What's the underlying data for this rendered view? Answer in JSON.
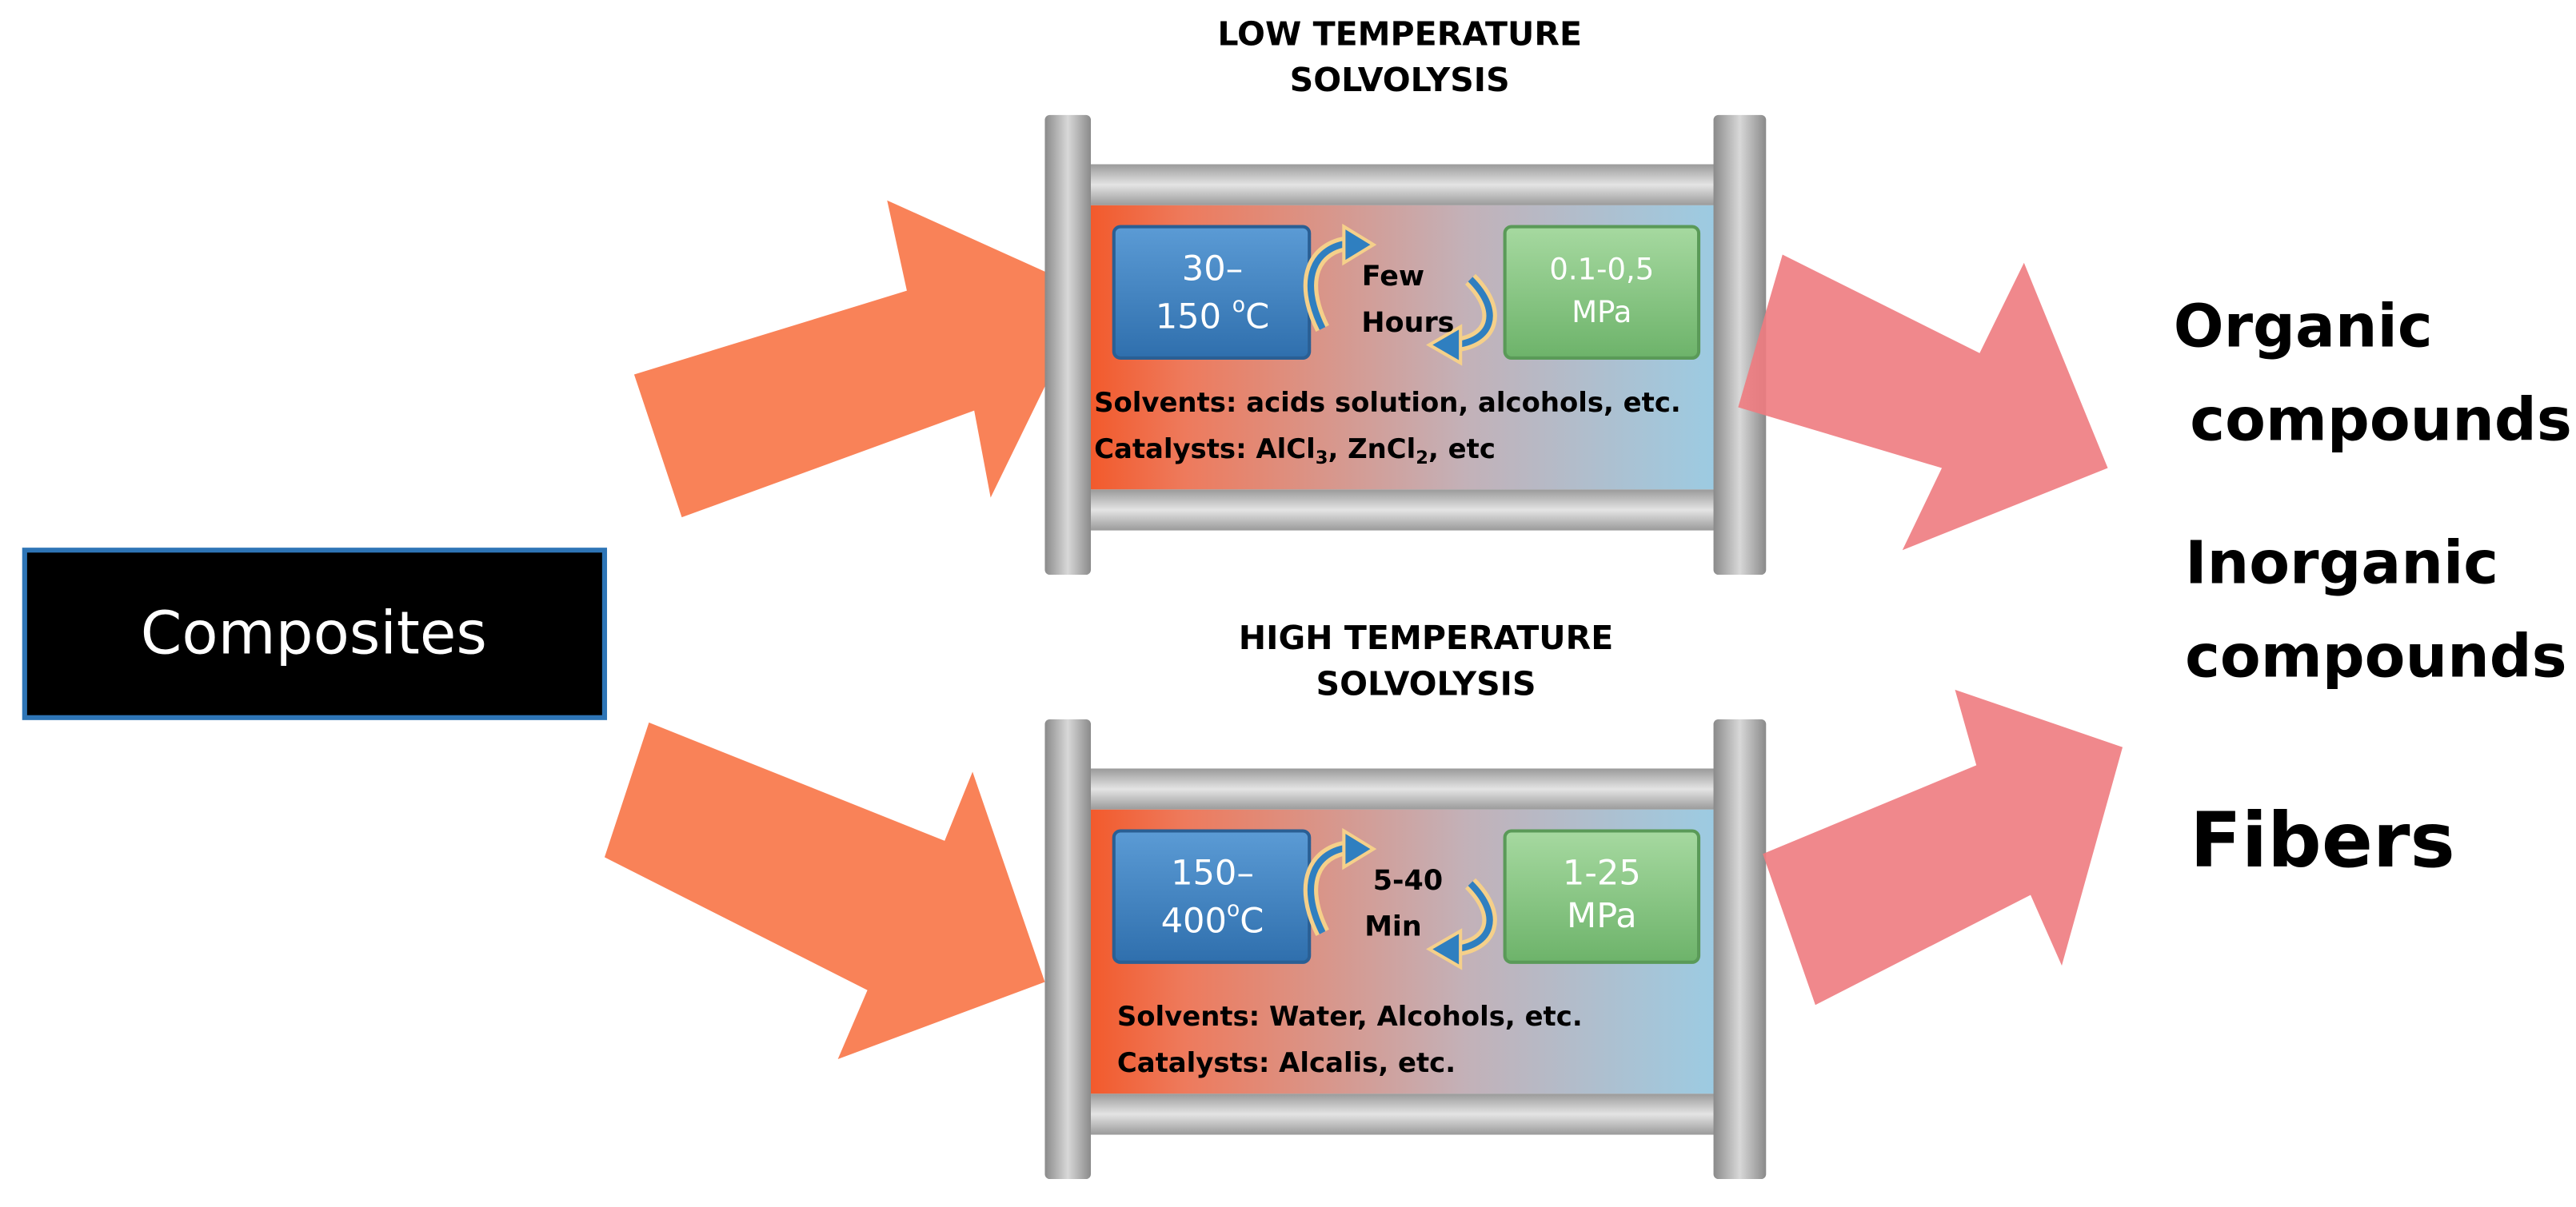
{
  "input": "Composites",
  "reactors": [
    {
      "title": [
        "LOW TEMPERATURE",
        "SOLVOLYSIS"
      ],
      "temperature": {
        "line1": "30–",
        "line2": "150 ",
        "degree": "o",
        "unit": "C"
      },
      "time": [
        "Few",
        "Hours"
      ],
      "pressure": [
        "0.1-0,5",
        "MPa"
      ],
      "solvents": "Solvents: acids solution, alcohols, etc.",
      "catalysts": [
        "Catalysts: AlCl",
        "3",
        ", ZnCl",
        "2",
        ", etc"
      ]
    },
    {
      "title": [
        "HIGH TEMPERATURE",
        "SOLVOLYSIS"
      ],
      "temperature": {
        "line1": "150–",
        "line2": "400",
        "degree": "o",
        "unit": "C"
      },
      "time": [
        "5-40",
        "Min"
      ],
      "pressure": [
        "1-25",
        "MPa"
      ],
      "solvents": "Solvents: Water, Alcohols, etc.",
      "catalysts": [
        "Catalysts: Alcalis, etc."
      ]
    }
  ],
  "outputs": [
    [
      "Organic",
      "compounds"
    ],
    [
      "Inorganic",
      "compounds"
    ],
    [
      "Fibers"
    ]
  ]
}
